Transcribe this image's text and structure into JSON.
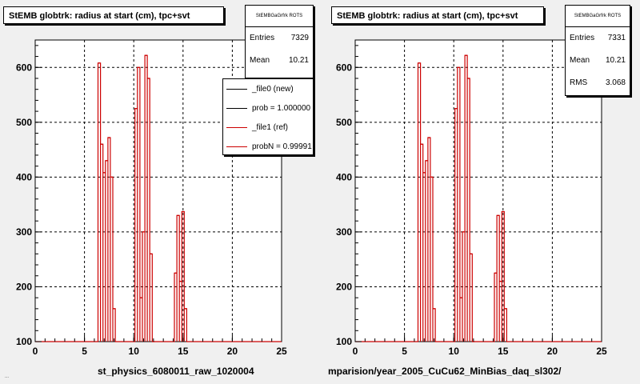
{
  "colors": {
    "hist": "#cc0000",
    "ref_line": "#000000",
    "frame_bg": "#ffffff",
    "canvas_bg": "#f0f0f0"
  },
  "footer": {
    "tiny_text": "..."
  },
  "chart_data": [
    {
      "type": "bar",
      "title": "StEMB globtrk: radius at start (cm), tpc+svt",
      "xlabel": "st_physics_6080011_raw_1020004",
      "ylabel": "",
      "xlim": [
        0,
        25
      ],
      "ylim": [
        100,
        650
      ],
      "x_ticks": [
        "0",
        "5",
        "10",
        "15",
        "20",
        "25"
      ],
      "y_ticks": [
        "100",
        "200",
        "300",
        "400",
        "500",
        "600"
      ],
      "grid": true,
      "stats": {
        "name": "StEMBGaGrfrk ROTS",
        "entries_label": "Entries",
        "entries": "7329",
        "mean_label": "Mean",
        "mean": "10.21"
      },
      "legend": {
        "placement": "top-right",
        "entries": [
          {
            "label": "_file0 (new)",
            "color": "#000000"
          },
          {
            "label": "prob = 1.000000",
            "color": "#000000"
          },
          {
            "label": "_file1 (ref)",
            "color": "#cc0000"
          },
          {
            "label": "probN = 0.99991",
            "color": "#cc0000"
          }
        ]
      },
      "bins": [
        {
          "x": 6.5,
          "y": 608
        },
        {
          "x": 6.75,
          "y": 460
        },
        {
          "x": 7.0,
          "y": 408
        },
        {
          "x": 7.25,
          "y": 430
        },
        {
          "x": 7.5,
          "y": 472
        },
        {
          "x": 7.75,
          "y": 400
        },
        {
          "x": 8.0,
          "y": 160
        },
        {
          "x": 10.25,
          "y": 525
        },
        {
          "x": 10.5,
          "y": 600
        },
        {
          "x": 10.75,
          "y": 180
        },
        {
          "x": 11.0,
          "y": 300
        },
        {
          "x": 11.25,
          "y": 622
        },
        {
          "x": 11.5,
          "y": 580
        },
        {
          "x": 11.75,
          "y": 260
        },
        {
          "x": 12.0,
          "y": 100
        },
        {
          "x": 14.25,
          "y": 225
        },
        {
          "x": 14.5,
          "y": 330
        },
        {
          "x": 14.75,
          "y": 210
        },
        {
          "x": 15.0,
          "y": 337
        },
        {
          "x": 15.25,
          "y": 160
        }
      ]
    },
    {
      "type": "bar",
      "title": "StEMB globtrk: radius at start (cm), tpc+svt",
      "xlabel": "mparision/year_2005_CuCu62_MinBias_daq_sl302/",
      "ylabel": "",
      "xlim": [
        0,
        25
      ],
      "ylim": [
        100,
        650
      ],
      "x_ticks": [
        "0",
        "5",
        "10",
        "15",
        "20",
        "25"
      ],
      "y_ticks": [
        "100",
        "200",
        "300",
        "400",
        "500",
        "600"
      ],
      "grid": true,
      "stats": {
        "name": "StEMBGaGrfrk ROTS",
        "entries_label": "Entries",
        "entries": "7331",
        "mean_label": "Mean",
        "mean": "10.21",
        "rms_label": "RMS",
        "rms": "3.068"
      },
      "bins": [
        {
          "x": 6.5,
          "y": 608
        },
        {
          "x": 6.75,
          "y": 460
        },
        {
          "x": 7.0,
          "y": 408
        },
        {
          "x": 7.25,
          "y": 430
        },
        {
          "x": 7.5,
          "y": 472
        },
        {
          "x": 7.75,
          "y": 400
        },
        {
          "x": 8.0,
          "y": 160
        },
        {
          "x": 10.25,
          "y": 525
        },
        {
          "x": 10.5,
          "y": 600
        },
        {
          "x": 10.75,
          "y": 180
        },
        {
          "x": 11.0,
          "y": 300
        },
        {
          "x": 11.25,
          "y": 622
        },
        {
          "x": 11.5,
          "y": 580
        },
        {
          "x": 11.75,
          "y": 260
        },
        {
          "x": 12.0,
          "y": 100
        },
        {
          "x": 14.25,
          "y": 225
        },
        {
          "x": 14.5,
          "y": 330
        },
        {
          "x": 14.75,
          "y": 210
        },
        {
          "x": 15.0,
          "y": 337
        },
        {
          "x": 15.25,
          "y": 160
        }
      ]
    }
  ]
}
